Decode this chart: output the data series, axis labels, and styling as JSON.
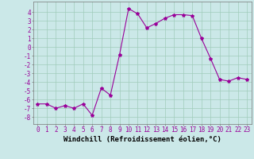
{
  "x": [
    0,
    1,
    2,
    3,
    4,
    5,
    6,
    7,
    8,
    9,
    10,
    11,
    12,
    13,
    14,
    15,
    16,
    17,
    18,
    19,
    20,
    21,
    22,
    23
  ],
  "y": [
    -6.5,
    -6.5,
    -7.0,
    -6.7,
    -7.0,
    -6.5,
    -7.8,
    -4.7,
    -5.5,
    -0.9,
    4.4,
    3.8,
    2.2,
    2.7,
    3.3,
    3.7,
    3.7,
    3.6,
    1.0,
    -1.3,
    -3.7,
    -3.9,
    -3.5,
    -3.7
  ],
  "line_color": "#990099",
  "marker": "*",
  "marker_size": 3,
  "bg_color": "#cbe8e8",
  "grid_color": "#a0ccbb",
  "xlabel": "Windchill (Refroidissement éolien,°C)",
  "xlim": [
    -0.5,
    23.5
  ],
  "ylim": [
    -8.8,
    5.2
  ],
  "yticks": [
    4,
    3,
    2,
    1,
    0,
    -1,
    -2,
    -3,
    -4,
    -5,
    -6,
    -7,
    -8
  ],
  "xticks": [
    0,
    1,
    2,
    3,
    4,
    5,
    6,
    7,
    8,
    9,
    10,
    11,
    12,
    13,
    14,
    15,
    16,
    17,
    18,
    19,
    20,
    21,
    22,
    23
  ],
  "tick_fontsize": 5.5,
  "xlabel_fontsize": 6.5
}
